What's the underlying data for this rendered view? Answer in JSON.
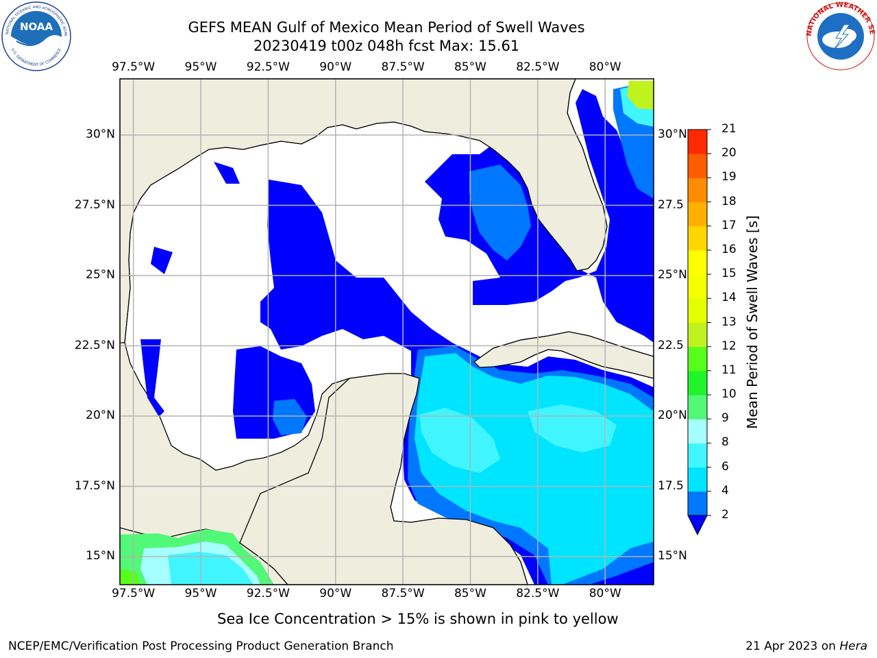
{
  "header": {
    "title_line1": "GEFS MEAN Gulf of Mexico Mean Period of Swell Waves",
    "title_line2": "20230419 t00z 048h fcst   Max: 15.61"
  },
  "logos": {
    "noaa_text": "NOAA",
    "noaa_ring_text": "NATIONAL OCEANIC AND ATMOSPHERIC ADMINISTRATION",
    "noaa_ring_bottom": "U.S. DEPARTMENT OF COMMERCE",
    "nws_ring_text": "NATIONAL WEATHER SERVICE"
  },
  "map": {
    "lon_labels": [
      "97.5°W",
      "95°W",
      "92.5°W",
      "90°W",
      "87.5°W",
      "85°W",
      "82.5°W",
      "80°W"
    ],
    "lon_values": [
      -97.5,
      -95,
      -92.5,
      -90,
      -87.5,
      -85,
      -82.5,
      -80
    ],
    "lat_labels_left": [
      "30°N",
      "27.5°N",
      "25°N",
      "22.5°N",
      "20°N",
      "17.5°N",
      "15°N"
    ],
    "lat_labels_right": [
      "30°N",
      "27.5",
      "25°N",
      "22.5",
      "20°N",
      "17.5",
      "15°N"
    ],
    "lat_values": [
      30,
      27.5,
      25,
      22.5,
      20,
      17.5,
      15
    ],
    "lon_range": [
      -98,
      -78.2
    ],
    "lat_range": [
      14,
      32
    ],
    "land_color": "#efedde",
    "ocean_color": "#ffffff",
    "grid": true
  },
  "colorbar": {
    "label": "Mean Period of Swell Waves [s]",
    "ticks": [
      "2",
      "4",
      "6",
      "8",
      "9",
      "10",
      "11",
      "12",
      "13",
      "14",
      "15",
      "16",
      "17",
      "18",
      "19",
      "20",
      "21"
    ],
    "colors": [
      "#0077ff",
      "#00e5ff",
      "#41f5ff",
      "#a6ffff",
      "#52f878",
      "#1ff52a",
      "#57ff1a",
      "#bff21e",
      "#e4ff00",
      "#f5ff00",
      "#ffff00",
      "#ffd700",
      "#ffb000",
      "#ff8c00",
      "#ff5c00",
      "#ff2a00"
    ],
    "under_color": "#0000ff"
  },
  "footer": {
    "note": "Sea Ice Concentration > 15% is shown in pink to yellow",
    "credit": "NCEP/EMC/Verification Post Processing Product Generation Branch",
    "date_prefix": "21 Apr 2023 on ",
    "machine": "Hera"
  }
}
